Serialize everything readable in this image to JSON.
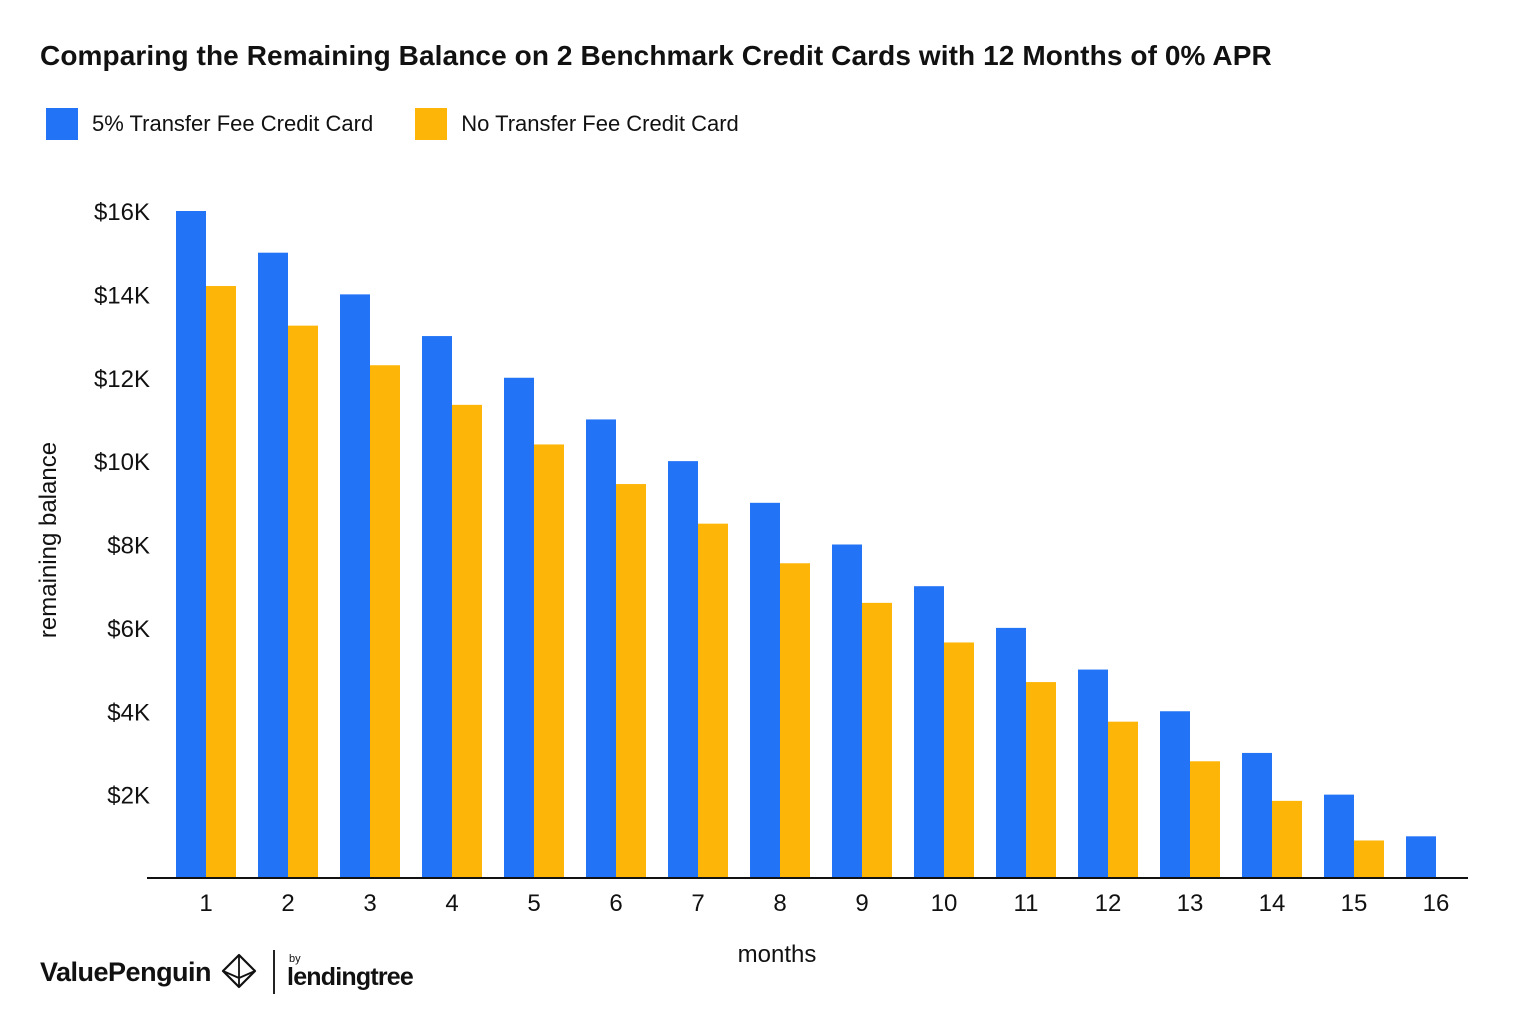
{
  "colors": {
    "series1": "#2373F6",
    "series2": "#FDB507",
    "axis": "#111111"
  },
  "brand": {
    "company": "ValuePenguin",
    "by": "by",
    "partner": "lendingtree"
  },
  "chart_data": {
    "type": "bar",
    "title": "Comparing the Remaining Balance on 2 Benchmark Credit Cards with 12 Months of 0% APR",
    "xlabel": "months",
    "ylabel": "remaining balance",
    "categories": [
      "1",
      "2",
      "3",
      "4",
      "5",
      "6",
      "7",
      "8",
      "9",
      "10",
      "11",
      "12",
      "13",
      "14",
      "15",
      "16"
    ],
    "series": [
      {
        "name": "5% Transfer Fee Credit Card",
        "values": [
          16000,
          15000,
          14000,
          13000,
          12000,
          11000,
          10000,
          9000,
          8000,
          7000,
          6000,
          5000,
          4000,
          3000,
          2000,
          1000
        ]
      },
      {
        "name": "No Transfer Fee Credit Card",
        "values": [
          14200,
          13250,
          12300,
          11350,
          10400,
          9450,
          8500,
          7550,
          6600,
          5650,
          4700,
          3750,
          2800,
          1850,
          900,
          0
        ]
      }
    ],
    "ylim": [
      0,
      16000
    ],
    "yticks": [
      2000,
      4000,
      6000,
      8000,
      10000,
      12000,
      14000,
      16000
    ],
    "ytick_labels": [
      "$2K",
      "$4K",
      "$6K",
      "$8K",
      "$10K",
      "$12K",
      "$14K",
      "$16K"
    ],
    "grid": false,
    "legend_position": "top-left"
  }
}
